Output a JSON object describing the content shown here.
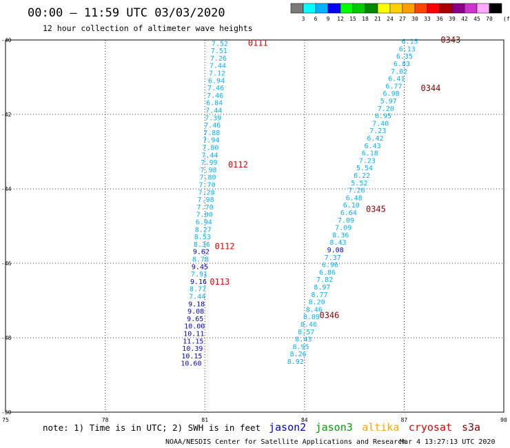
{
  "header": {
    "title": "00:00 – 11:59 UTC 03/03/2020",
    "subtitle": "12 hour collection of altimeter wave heights"
  },
  "color_scale": {
    "unit": "(ft)",
    "labels": [
      "3",
      "6",
      "9",
      "12",
      "15",
      "18",
      "21",
      "24",
      "27",
      "30",
      "33",
      "36",
      "39",
      "42",
      "45",
      "70"
    ],
    "colors": [
      "#7a7a7a",
      "#00ffff",
      "#00b3ff",
      "#0000ff",
      "#00ff00",
      "#00cc00",
      "#008800",
      "#ffff00",
      "#ffd000",
      "#ffa000",
      "#ff4400",
      "#ff0000",
      "#aa0000",
      "#880088",
      "#cc33cc",
      "#ffaaff",
      "#000000"
    ]
  },
  "footer": {
    "note": "note:  1) Time is in UTC;  2) SWH is in feet",
    "satellites": [
      {
        "name": "jason2",
        "color": "#0000cc"
      },
      {
        "name": "jason3",
        "color": "#00a000"
      },
      {
        "name": "altika",
        "color": "#ffa500"
      },
      {
        "name": "cryosat",
        "color": "#dd0000"
      },
      {
        "name": "s3a",
        "color": "#880000"
      }
    ],
    "credit": "NOAA/NESDIS Center for Satellite Applications and Research",
    "timestamp": "Mar  4 13:27:13 UTC 2020"
  },
  "chart_data": {
    "type": "scatter",
    "title": "00:00 – 11:59 UTC 03/03/2020",
    "xlim": [
      75,
      90
    ],
    "ylim": [
      -50,
      -40
    ],
    "x_ticks": [
      "75",
      "78",
      "81",
      "84",
      "87",
      "90"
    ],
    "y_ticks": [
      "-40",
      "-42",
      "-44",
      "-46",
      "-48",
      "-50"
    ],
    "grid": true,
    "tracks": [
      {
        "points": [
          {
            "lon": 81.45,
            "lat": -40.08,
            "v": "7.52",
            "c": "#00b3ff"
          },
          {
            "lon": 81.43,
            "lat": -40.28,
            "v": "7.51",
            "c": "#00b3ff"
          },
          {
            "lon": 81.41,
            "lat": -40.48,
            "v": "7.26",
            "c": "#00b3ff"
          },
          {
            "lon": 81.39,
            "lat": -40.68,
            "v": "7.44",
            "c": "#00b3ff"
          },
          {
            "lon": 81.37,
            "lat": -40.88,
            "v": "7.12",
            "c": "#00b3ff"
          },
          {
            "lon": 81.35,
            "lat": -41.08,
            "v": "6.94",
            "c": "#00b3ff"
          },
          {
            "lon": 81.33,
            "lat": -41.28,
            "v": "7.46",
            "c": "#00b3ff"
          },
          {
            "lon": 81.31,
            "lat": -41.48,
            "v": "7.46",
            "c": "#00b3ff"
          },
          {
            "lon": 81.29,
            "lat": -41.68,
            "v": "6.84",
            "c": "#00b3ff"
          },
          {
            "lon": 81.27,
            "lat": -41.88,
            "v": "7.44",
            "c": "#00b3ff"
          },
          {
            "lon": 81.25,
            "lat": -42.08,
            "v": "7.39",
            "c": "#00b3ff"
          },
          {
            "lon": 81.23,
            "lat": -42.28,
            "v": "7.46",
            "c": "#00b3ff"
          },
          {
            "lon": 81.21,
            "lat": -42.48,
            "v": "7.88",
            "c": "#00b3ff"
          },
          {
            "lon": 81.19,
            "lat": -42.68,
            "v": "7.94",
            "c": "#00b3ff"
          },
          {
            "lon": 81.17,
            "lat": -42.88,
            "v": "7.80",
            "c": "#00b3ff"
          },
          {
            "lon": 81.15,
            "lat": -43.08,
            "v": "7.44",
            "c": "#00b3ff"
          },
          {
            "lon": 81.13,
            "lat": -43.28,
            "v": "7.99",
            "c": "#00b3ff"
          },
          {
            "lon": 81.11,
            "lat": -43.48,
            "v": "7.98",
            "c": "#00b3ff"
          },
          {
            "lon": 81.09,
            "lat": -43.68,
            "v": "7.80",
            "c": "#00b3ff"
          },
          {
            "lon": 81.07,
            "lat": -43.88,
            "v": "7.70",
            "c": "#00b3ff"
          },
          {
            "lon": 81.05,
            "lat": -44.08,
            "v": "7.28",
            "c": "#00b3ff"
          },
          {
            "lon": 81.03,
            "lat": -44.28,
            "v": "7.98",
            "c": "#00b3ff"
          },
          {
            "lon": 81.01,
            "lat": -44.48,
            "v": "7.70",
            "c": "#00b3ff"
          },
          {
            "lon": 80.99,
            "lat": -44.68,
            "v": "7.00",
            "c": "#00b3ff"
          },
          {
            "lon": 80.97,
            "lat": -44.88,
            "v": "6.94",
            "c": "#00b3ff"
          },
          {
            "lon": 80.95,
            "lat": -45.08,
            "v": "8.27",
            "c": "#00b3ff"
          },
          {
            "lon": 80.93,
            "lat": -45.28,
            "v": "8.53",
            "c": "#00b3ff"
          },
          {
            "lon": 80.91,
            "lat": -45.48,
            "v": "8.36",
            "c": "#00b3ff"
          },
          {
            "lon": 80.89,
            "lat": -45.68,
            "v": "9.62",
            "c": "#0000cc"
          },
          {
            "lon": 80.87,
            "lat": -45.88,
            "v": "8.78",
            "c": "#00b3ff"
          },
          {
            "lon": 80.85,
            "lat": -46.08,
            "v": "9.45",
            "c": "#0000cc"
          },
          {
            "lon": 80.83,
            "lat": -46.28,
            "v": "7.91",
            "c": "#00b3ff"
          },
          {
            "lon": 80.81,
            "lat": -46.48,
            "v": "9.16",
            "c": "#0000cc"
          },
          {
            "lon": 80.79,
            "lat": -46.68,
            "v": "8.77",
            "c": "#00b3ff"
          },
          {
            "lon": 80.77,
            "lat": -46.88,
            "v": "7.44",
            "c": "#00b3ff"
          },
          {
            "lon": 80.75,
            "lat": -47.08,
            "v": "9.18",
            "c": "#0000cc"
          },
          {
            "lon": 80.73,
            "lat": -47.28,
            "v": "9.08",
            "c": "#0000cc"
          },
          {
            "lon": 80.71,
            "lat": -47.48,
            "v": "9.65",
            "c": "#0000cc"
          },
          {
            "lon": 80.69,
            "lat": -47.68,
            "v": "10.00",
            "c": "#0000cc"
          },
          {
            "lon": 80.67,
            "lat": -47.88,
            "v": "10.11",
            "c": "#0000cc"
          },
          {
            "lon": 80.65,
            "lat": -48.08,
            "v": "11.15",
            "c": "#0000cc"
          },
          {
            "lon": 80.63,
            "lat": -48.28,
            "v": "10.39",
            "c": "#0000cc"
          },
          {
            "lon": 80.61,
            "lat": -48.48,
            "v": "10.15",
            "c": "#0000cc"
          },
          {
            "lon": 80.59,
            "lat": -48.68,
            "v": "10.60",
            "c": "#0000cc"
          }
        ],
        "passes": [
          {
            "label": "0111",
            "lon": 82.3,
            "lat": -40.08,
            "c": "#dd0000"
          },
          {
            "lon": 81.7,
            "lat": -43.35,
            "label": "0112",
            "c": "#dd0000"
          },
          {
            "lon": 81.3,
            "lat": -45.55,
            "label": "0112",
            "c": "#dd0000"
          },
          {
            "lon": 81.15,
            "lat": -46.5,
            "label": "0113",
            "c": "#dd0000"
          }
        ]
      },
      {
        "points": [
          {
            "lon": 87.17,
            "lat": -40.03,
            "v": "6.15",
            "c": "#00b3ff"
          },
          {
            "lon": 87.09,
            "lat": -40.23,
            "v": "6.13",
            "c": "#00b3ff"
          },
          {
            "lon": 87.01,
            "lat": -40.43,
            "v": "6.35",
            "c": "#00b3ff"
          },
          {
            "lon": 86.93,
            "lat": -40.63,
            "v": "6.83",
            "c": "#00b3ff"
          },
          {
            "lon": 86.85,
            "lat": -40.83,
            "v": "7.02",
            "c": "#00b3ff"
          },
          {
            "lon": 86.77,
            "lat": -41.03,
            "v": "6.41",
            "c": "#00b3ff"
          },
          {
            "lon": 86.69,
            "lat": -41.23,
            "v": "6.77",
            "c": "#00b3ff"
          },
          {
            "lon": 86.61,
            "lat": -41.43,
            "v": "6.98",
            "c": "#00b3ff"
          },
          {
            "lon": 86.53,
            "lat": -41.63,
            "v": "5.97",
            "c": "#00b3ff"
          },
          {
            "lon": 86.45,
            "lat": -41.83,
            "v": "7.20",
            "c": "#00b3ff"
          },
          {
            "lon": 86.37,
            "lat": -42.03,
            "v": "6.95",
            "c": "#00b3ff"
          },
          {
            "lon": 86.29,
            "lat": -42.23,
            "v": "7.40",
            "c": "#00b3ff"
          },
          {
            "lon": 86.21,
            "lat": -42.43,
            "v": "7.23",
            "c": "#00b3ff"
          },
          {
            "lon": 86.13,
            "lat": -42.63,
            "v": "6.42",
            "c": "#00b3ff"
          },
          {
            "lon": 86.05,
            "lat": -42.83,
            "v": "6.43",
            "c": "#00b3ff"
          },
          {
            "lon": 85.97,
            "lat": -43.03,
            "v": "6.18",
            "c": "#00b3ff"
          },
          {
            "lon": 85.89,
            "lat": -43.23,
            "v": "7.23",
            "c": "#00b3ff"
          },
          {
            "lon": 85.81,
            "lat": -43.43,
            "v": "5.54",
            "c": "#00b3ff"
          },
          {
            "lon": 85.73,
            "lat": -43.63,
            "v": "6.22",
            "c": "#00b3ff"
          },
          {
            "lon": 85.65,
            "lat": -43.83,
            "v": "5.52",
            "c": "#00b3ff"
          },
          {
            "lon": 85.57,
            "lat": -44.03,
            "v": "7.26",
            "c": "#00b3ff"
          },
          {
            "lon": 85.49,
            "lat": -44.23,
            "v": "6.48",
            "c": "#00b3ff"
          },
          {
            "lon": 85.41,
            "lat": -44.43,
            "v": "6.10",
            "c": "#00b3ff"
          },
          {
            "lon": 85.33,
            "lat": -44.63,
            "v": "6.64",
            "c": "#00b3ff"
          },
          {
            "lon": 85.25,
            "lat": -44.83,
            "v": "7.09",
            "c": "#00b3ff"
          },
          {
            "lon": 85.17,
            "lat": -45.03,
            "v": "7.09",
            "c": "#00b3ff"
          },
          {
            "lon": 85.09,
            "lat": -45.23,
            "v": "8.36",
            "c": "#00b3ff"
          },
          {
            "lon": 85.01,
            "lat": -45.43,
            "v": "8.43",
            "c": "#00b3ff"
          },
          {
            "lon": 84.93,
            "lat": -45.63,
            "v": "9.08",
            "c": "#0000cc"
          },
          {
            "lon": 84.85,
            "lat": -45.83,
            "v": "7.37",
            "c": "#00b3ff"
          },
          {
            "lon": 84.77,
            "lat": -46.03,
            "v": "6.96",
            "c": "#00b3ff"
          },
          {
            "lon": 84.69,
            "lat": -46.23,
            "v": "6.86",
            "c": "#00b3ff"
          },
          {
            "lon": 84.61,
            "lat": -46.43,
            "v": "7.82",
            "c": "#00b3ff"
          },
          {
            "lon": 84.53,
            "lat": -46.63,
            "v": "8.97",
            "c": "#00b3ff"
          },
          {
            "lon": 84.45,
            "lat": -46.83,
            "v": "8.77",
            "c": "#00b3ff"
          },
          {
            "lon": 84.37,
            "lat": -47.03,
            "v": "8.20",
            "c": "#00b3ff"
          },
          {
            "lon": 84.29,
            "lat": -47.23,
            "v": "8.46",
            "c": "#00b3ff"
          },
          {
            "lon": 84.21,
            "lat": -47.43,
            "v": "8.09",
            "c": "#00b3ff"
          },
          {
            "lon": 84.13,
            "lat": -47.63,
            "v": "8.46",
            "c": "#00b3ff"
          },
          {
            "lon": 84.05,
            "lat": -47.83,
            "v": "8.57",
            "c": "#00b3ff"
          },
          {
            "lon": 83.97,
            "lat": -48.03,
            "v": "8.43",
            "c": "#00b3ff"
          },
          {
            "lon": 83.89,
            "lat": -48.23,
            "v": "8.95",
            "c": "#00b3ff"
          },
          {
            "lon": 83.81,
            "lat": -48.43,
            "v": "8.26",
            "c": "#00b3ff"
          },
          {
            "lon": 83.73,
            "lat": -48.63,
            "v": "8.92",
            "c": "#00b3ff"
          }
        ],
        "passes": [
          {
            "lon": 88.1,
            "lat": -40.0,
            "label": "0343",
            "c": "#880000"
          },
          {
            "lon": 87.5,
            "lat": -41.3,
            "label": "0344",
            "c": "#880000"
          },
          {
            "lon": 85.85,
            "lat": -44.55,
            "label": "0345",
            "c": "#880000"
          },
          {
            "lon": 84.45,
            "lat": -47.4,
            "label": "0346",
            "c": "#880000"
          }
        ]
      }
    ]
  }
}
